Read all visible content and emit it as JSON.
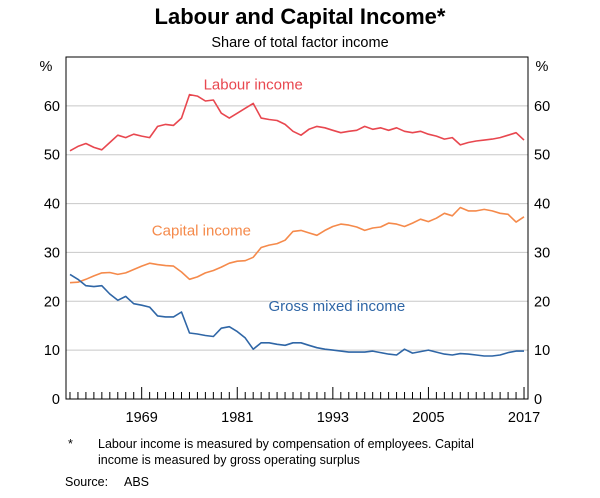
{
  "chart_data": {
    "type": "line",
    "title": "Labour and Capital Income*",
    "subtitle": "Share of total factor income",
    "ylabel_left": "%",
    "ylabel_right": "%",
    "ylim": [
      0,
      70
    ],
    "yticks": [
      0,
      10,
      20,
      30,
      40,
      50,
      60
    ],
    "xlim": [
      1959.5,
      2017.5
    ],
    "xticks": [
      1969,
      1981,
      1993,
      2005,
      2017
    ],
    "grid": true,
    "series": [
      {
        "name": "Labour income",
        "color": "#e8474f",
        "x": [
          1960,
          1961,
          1962,
          1963,
          1964,
          1965,
          1966,
          1967,
          1968,
          1969,
          1970,
          1971,
          1972,
          1973,
          1974,
          1975,
          1976,
          1977,
          1978,
          1979,
          1980,
          1981,
          1982,
          1983,
          1984,
          1985,
          1986,
          1987,
          1988,
          1989,
          1990,
          1991,
          1992,
          1993,
          1994,
          1995,
          1996,
          1997,
          1998,
          1999,
          2000,
          2001,
          2002,
          2003,
          2004,
          2005,
          2006,
          2007,
          2008,
          2009,
          2010,
          2011,
          2012,
          2013,
          2014,
          2015,
          2016,
          2017
        ],
        "values": [
          50.8,
          51.7,
          52.3,
          51.5,
          51.0,
          52.5,
          54.0,
          53.5,
          54.2,
          53.8,
          53.5,
          55.8,
          56.2,
          56.0,
          57.5,
          62.3,
          62.0,
          61.0,
          61.2,
          58.5,
          57.5,
          58.5,
          59.5,
          60.5,
          57.5,
          57.2,
          57.0,
          56.2,
          54.8,
          54.0,
          55.2,
          55.8,
          55.5,
          55.0,
          54.5,
          54.8,
          55.0,
          55.8,
          55.2,
          55.5,
          55.0,
          55.5,
          54.8,
          54.5,
          54.8,
          54.2,
          53.8,
          53.2,
          53.5,
          52.0,
          52.5,
          52.8,
          53.0,
          53.2,
          53.5,
          54.0,
          54.5,
          53.0
        ]
      },
      {
        "name": "Capital income",
        "color": "#f58a4b",
        "x": [
          1960,
          1961,
          1962,
          1963,
          1964,
          1965,
          1966,
          1967,
          1968,
          1969,
          1970,
          1971,
          1972,
          1973,
          1974,
          1975,
          1976,
          1977,
          1978,
          1979,
          1980,
          1981,
          1982,
          1983,
          1984,
          1985,
          1986,
          1987,
          1988,
          1989,
          1990,
          1991,
          1992,
          1993,
          1994,
          1995,
          1996,
          1997,
          1998,
          1999,
          2000,
          2001,
          2002,
          2003,
          2004,
          2005,
          2006,
          2007,
          2008,
          2009,
          2010,
          2011,
          2012,
          2013,
          2014,
          2015,
          2016,
          2017
        ],
        "values": [
          23.8,
          23.9,
          24.5,
          25.2,
          25.8,
          25.9,
          25.5,
          25.8,
          26.5,
          27.2,
          27.8,
          27.5,
          27.3,
          27.2,
          26.0,
          24.5,
          25.0,
          25.8,
          26.3,
          27.0,
          27.8,
          28.2,
          28.3,
          29.0,
          31.0,
          31.5,
          31.8,
          32.5,
          34.3,
          34.5,
          34.0,
          33.5,
          34.5,
          35.3,
          35.8,
          35.6,
          35.2,
          34.5,
          35.0,
          35.2,
          36.0,
          35.8,
          35.3,
          36.0,
          36.8,
          36.3,
          37.0,
          38.0,
          37.5,
          39.2,
          38.5,
          38.5,
          38.8,
          38.5,
          38.0,
          37.8,
          36.2,
          37.3
        ]
      },
      {
        "name": "Gross mixed income",
        "color": "#2f66a6",
        "x": [
          1960,
          1961,
          1962,
          1963,
          1964,
          1965,
          1966,
          1967,
          1968,
          1969,
          1970,
          1971,
          1972,
          1973,
          1974,
          1975,
          1976,
          1977,
          1978,
          1979,
          1980,
          1981,
          1982,
          1983,
          1984,
          1985,
          1986,
          1987,
          1988,
          1989,
          1990,
          1991,
          1992,
          1993,
          1994,
          1995,
          1996,
          1997,
          1998,
          1999,
          2000,
          2001,
          2002,
          2003,
          2004,
          2005,
          2006,
          2007,
          2008,
          2009,
          2010,
          2011,
          2012,
          2013,
          2014,
          2015,
          2016,
          2017
        ],
        "values": [
          25.5,
          24.5,
          23.2,
          23.0,
          23.2,
          21.5,
          20.2,
          21.0,
          19.5,
          19.2,
          18.8,
          17.0,
          16.8,
          16.8,
          17.8,
          13.5,
          13.3,
          13.0,
          12.8,
          14.5,
          14.8,
          13.8,
          12.5,
          10.2,
          11.5,
          11.5,
          11.2,
          11.0,
          11.5,
          11.5,
          11.0,
          10.5,
          10.2,
          10.0,
          9.8,
          9.6,
          9.6,
          9.6,
          9.8,
          9.5,
          9.2,
          9.0,
          10.2,
          9.4,
          9.7,
          10.0,
          9.6,
          9.2,
          9.0,
          9.3,
          9.2,
          9.0,
          8.8,
          8.8,
          9.0,
          9.5,
          9.8,
          9.8
        ]
      }
    ],
    "annotations": [
      {
        "text": "Labour income",
        "color": "#e8474f",
        "x": 1983,
        "y": 63.3
      },
      {
        "text": "Capital income",
        "color": "#f58a4b",
        "x": 1976.5,
        "y": 33.5
      },
      {
        "text": "Gross mixed income",
        "color": "#2f66a6",
        "x": 1993.5,
        "y": 18.0
      }
    ]
  },
  "footnotes": {
    "asterisk": "*",
    "note_line1": "Labour income is measured by compensation of employees. Capital",
    "note_line2": "income is measured by gross operating surplus",
    "source_label": "Source:",
    "source_value": "ABS"
  }
}
